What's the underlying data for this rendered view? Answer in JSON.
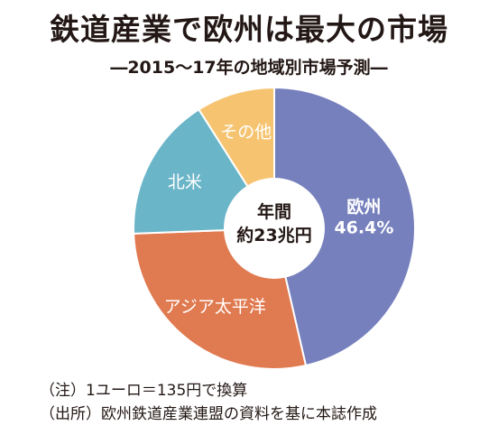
{
  "chart_data": {
    "type": "pie",
    "variant": "donut",
    "title": "鉄道産業で欧州は最大の市場",
    "subtitle": "―2015〜17年の地域別市場予測―",
    "center_label": [
      "年間",
      "約23兆円"
    ],
    "categories": [
      "欧州",
      "アジア太平洋",
      "北米",
      "その他"
    ],
    "values": [
      46.4,
      28.0,
      16.6,
      9.0
    ],
    "value_labels": [
      "46.4%",
      "",
      "",
      ""
    ],
    "colors": [
      "#7680bd",
      "#e07a50",
      "#6bb5c8",
      "#f6c471"
    ]
  },
  "notes": [
    "（注）1ユーロ＝135円で換算",
    "（出所）欧州鉄道産業連盟の資料を基に本誌作成"
  ]
}
